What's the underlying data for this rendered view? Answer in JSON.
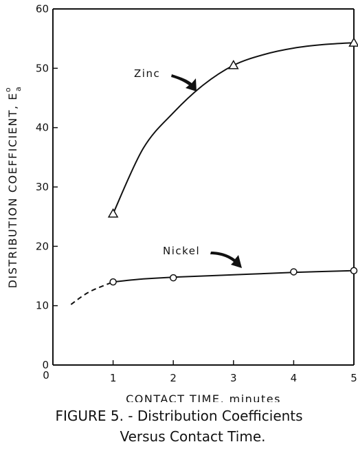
{
  "chart_data": {
    "type": "line",
    "xlabel": "CONTACT TIME, minutes",
    "ylabel": "DISTRIBUTION COEFFICIENT, E",
    "ylabel_symbol": {
      "base": "E",
      "superscript": "o",
      "subscript": "a"
    },
    "xlim": [
      0,
      5
    ],
    "ylim": [
      0,
      60
    ],
    "x_ticks": [
      0,
      1,
      2,
      3,
      4,
      5
    ],
    "y_ticks": [
      0,
      10,
      20,
      30,
      40,
      50,
      60
    ],
    "grid": false,
    "series": [
      {
        "name": "Zinc",
        "marker": "triangle",
        "x": [
          1,
          3,
          5
        ],
        "y": [
          25.5,
          50.5,
          54.3
        ],
        "curve": [
          [
            1,
            25.5
          ],
          [
            1.5,
            36.5
          ],
          [
            2,
            42.5
          ],
          [
            2.5,
            47.2
          ],
          [
            3,
            50.5
          ],
          [
            3.5,
            52.3
          ],
          [
            4,
            53.4
          ],
          [
            4.5,
            54.0
          ],
          [
            5,
            54.3
          ]
        ]
      },
      {
        "name": "Nickel",
        "marker": "circle",
        "x": [
          1,
          2,
          4,
          5
        ],
        "y": [
          14.0,
          14.7,
          15.7,
          15.9
        ],
        "curve": [
          [
            1,
            14.0
          ],
          [
            1.5,
            14.5
          ],
          [
            2,
            14.8
          ],
          [
            3,
            15.2
          ],
          [
            4,
            15.6
          ],
          [
            5,
            15.9
          ]
        ],
        "extrapolation": [
          [
            0.3,
            10.2
          ],
          [
            0.6,
            12.3
          ],
          [
            1,
            14.0
          ]
        ]
      }
    ]
  },
  "caption": {
    "line1": "FIGURE 5. - Distribution Coefficients",
    "line2": "Versus Contact Time."
  }
}
